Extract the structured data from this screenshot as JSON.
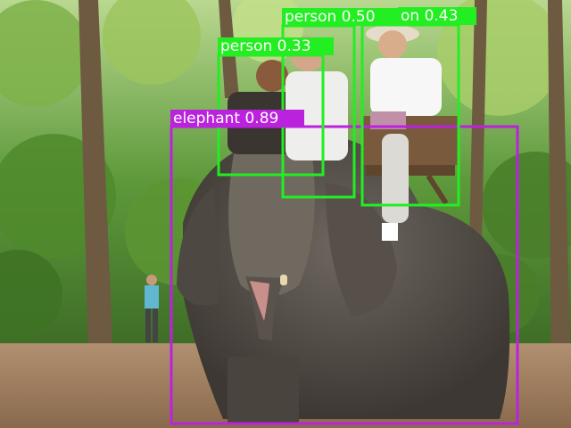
{
  "image": {
    "subject": "elephant-ride",
    "colors": {
      "person_box": "#22ee22",
      "elephant_box": "#bb22dd",
      "label_text": "#ffffff"
    }
  },
  "detections": [
    {
      "label": "elephant 0.89",
      "class": "elephant",
      "score": 0.89
    },
    {
      "label": "person 0.50",
      "class": "person",
      "score": 0.5
    },
    {
      "label": "on 0.43",
      "class": "person",
      "score": 0.43
    },
    {
      "label": "person 0.33",
      "class": "person",
      "score": 0.33
    }
  ]
}
